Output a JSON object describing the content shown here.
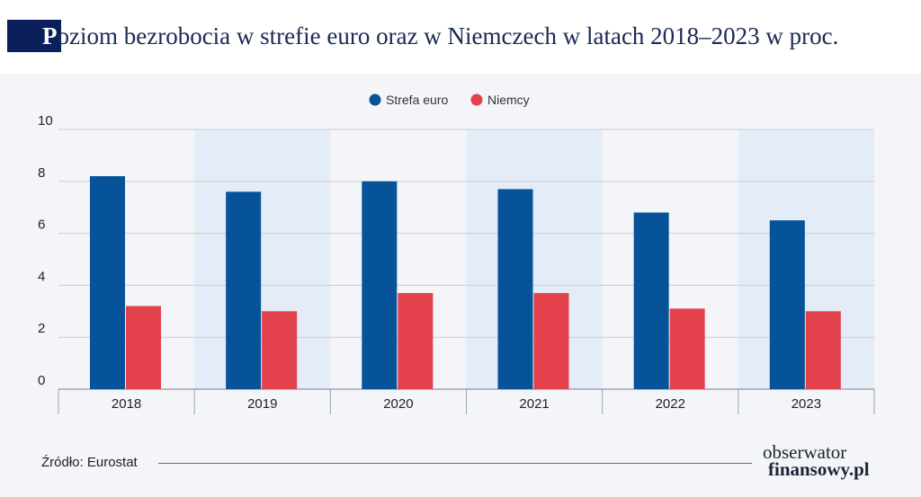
{
  "header": {
    "title_first_letter": "P",
    "title_rest": "oziom bezrobocia w strefie euro oraz w Niemczech w latach 2018–2023 w proc."
  },
  "footer": {
    "source": "Źródło: Eurostat",
    "logo_line1": "obserwator",
    "logo_line2": "finansowy.pl"
  },
  "colors": {
    "series1": "#06539a",
    "series2": "#e3414b",
    "band": "#e4edf7",
    "title_accent": "#0a1f5c"
  },
  "chart_data": {
    "type": "bar",
    "title": "Poziom bezrobocia w strefie euro oraz w Niemczech w latach 2018–2023 w proc.",
    "categories": [
      "2018",
      "2019",
      "2020",
      "2021",
      "2022",
      "2023"
    ],
    "series": [
      {
        "name": "Strefa euro",
        "values": [
          8.2,
          7.6,
          8.0,
          7.7,
          6.8,
          6.5
        ]
      },
      {
        "name": "Niemcy",
        "values": [
          3.2,
          3.0,
          3.7,
          3.7,
          3.1,
          3.0
        ]
      }
    ],
    "yticks": [
      0,
      2,
      4,
      6,
      8,
      10
    ],
    "ylim": [
      0,
      10
    ],
    "grid": true,
    "legend_position": "top-center",
    "xlabel": "",
    "ylabel": ""
  }
}
